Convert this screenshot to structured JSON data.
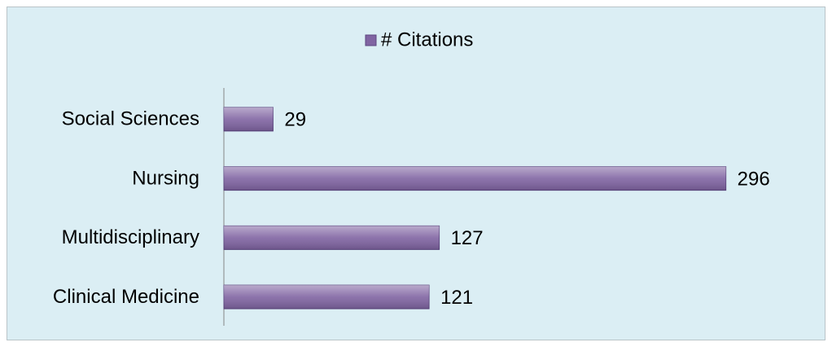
{
  "chart_data": {
    "type": "bar",
    "orientation": "horizontal",
    "legend": "# Citations",
    "legend_position": "top",
    "categories": [
      "Social Sciences",
      "Nursing",
      "Multidisciplinary",
      "Clinical Medicine"
    ],
    "values": [
      29,
      296,
      127,
      121
    ],
    "color": "#8064a2",
    "xlim": [
      0,
      300
    ]
  }
}
